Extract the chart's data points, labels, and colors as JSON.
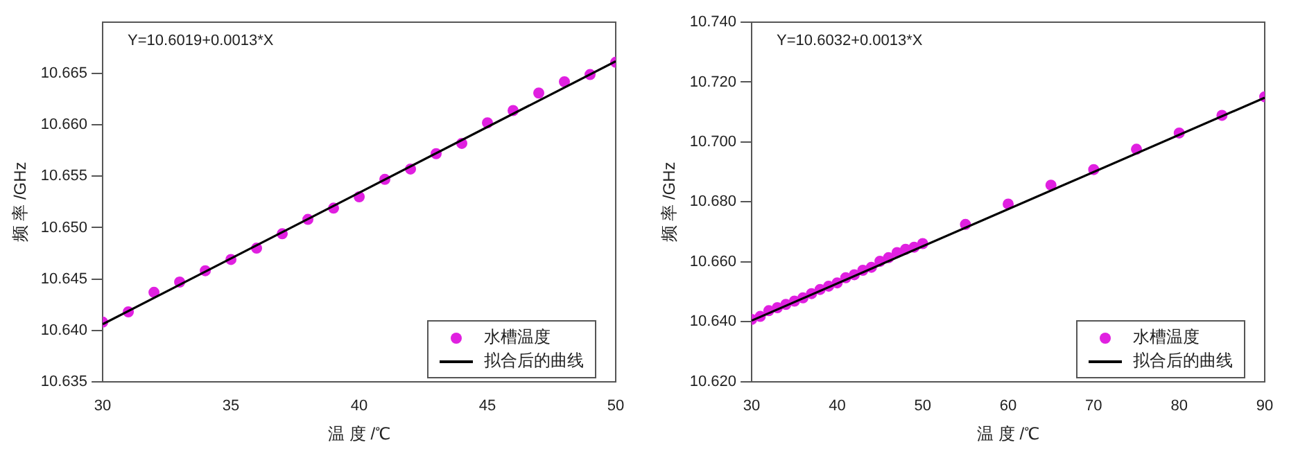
{
  "chart_data": [
    {
      "type": "scatter",
      "xlabel": "温 度 /℃",
      "ylabel": "频 率 /GHz",
      "annotations": [
        "Y=10.6019+0.0013*X"
      ],
      "xlim": [
        30,
        50
      ],
      "xticks": [
        30,
        35,
        40,
        45,
        50
      ],
      "ylim": [
        10.635,
        10.67
      ],
      "yticks": [
        {
          "value": 10.635,
          "label": "10.635"
        },
        {
          "value": 10.64,
          "label": "10.640"
        },
        {
          "value": 10.645,
          "label": "10.645"
        },
        {
          "value": 10.65,
          "label": "10.650"
        },
        {
          "value": 10.655,
          "label": "10.655"
        },
        {
          "value": 10.66,
          "label": "10.660"
        },
        {
          "value": 10.665,
          "label": "10.665"
        }
      ],
      "grid": false,
      "legend": "bottom right",
      "marker": "circle",
      "series": [
        {
          "name": "水槽温度",
          "color": "#e020e0",
          "x": [
            30,
            31,
            32,
            33,
            34,
            35,
            36,
            37,
            38,
            39,
            40,
            41,
            42,
            43,
            44,
            45,
            46,
            47,
            48,
            49,
            50
          ],
          "values": [
            10.6408,
            10.6418,
            10.6437,
            10.6447,
            10.6458,
            10.6469,
            10.648,
            10.6494,
            10.6508,
            10.6519,
            10.653,
            10.6547,
            10.6557,
            10.6572,
            10.6582,
            10.6602,
            10.6614,
            10.6631,
            10.6642,
            10.6649,
            10.6661
          ]
        },
        {
          "name": "拟合后的曲线",
          "type": "line",
          "color": "#000000",
          "marker": "none",
          "line_style": "solid",
          "x": [
            30,
            50
          ],
          "values": [
            10.6406,
            10.6662
          ]
        }
      ]
    },
    {
      "type": "scatter",
      "xlabel": "温 度 /℃",
      "ylabel": "频 率 /GHz",
      "annotations": [
        "Y=10.6032+0.0013*X"
      ],
      "xlim": [
        30,
        90
      ],
      "xticks": [
        30,
        40,
        50,
        60,
        70,
        80,
        90
      ],
      "ylim": [
        10.62,
        10.74
      ],
      "yticks": [
        {
          "value": 10.62,
          "label": "10.620"
        },
        {
          "value": 10.64,
          "label": "10.640"
        },
        {
          "value": 10.66,
          "label": "10.660"
        },
        {
          "value": 10.68,
          "label": "10.680"
        },
        {
          "value": 10.7,
          "label": "10.700"
        },
        {
          "value": 10.72,
          "label": "10.720"
        },
        {
          "value": 10.74,
          "label": "10.740"
        }
      ],
      "grid": false,
      "legend": "bottom right",
      "marker": "circle",
      "series": [
        {
          "name": "水槽温度",
          "color": "#e020e0",
          "x": [
            30,
            31,
            32,
            33,
            34,
            35,
            36,
            37,
            38,
            39,
            40,
            41,
            42,
            43,
            44,
            45,
            46,
            47,
            48,
            49,
            50,
            55,
            60,
            65,
            70,
            75,
            80,
            85,
            90
          ],
          "values": [
            10.6408,
            10.6418,
            10.6437,
            10.6447,
            10.6458,
            10.6469,
            10.648,
            10.6494,
            10.6508,
            10.6519,
            10.653,
            10.6547,
            10.6557,
            10.6572,
            10.6582,
            10.6602,
            10.6614,
            10.6631,
            10.6642,
            10.6649,
            10.6661,
            10.6725,
            10.6793,
            10.6856,
            10.6908,
            10.6976,
            10.703,
            10.7089,
            10.7151
          ]
        },
        {
          "name": "拟合后的曲线",
          "type": "line",
          "color": "#000000",
          "marker": "none",
          "line_style": "solid",
          "x": [
            30,
            90
          ],
          "values": [
            10.6404,
            10.7148
          ]
        }
      ]
    }
  ]
}
